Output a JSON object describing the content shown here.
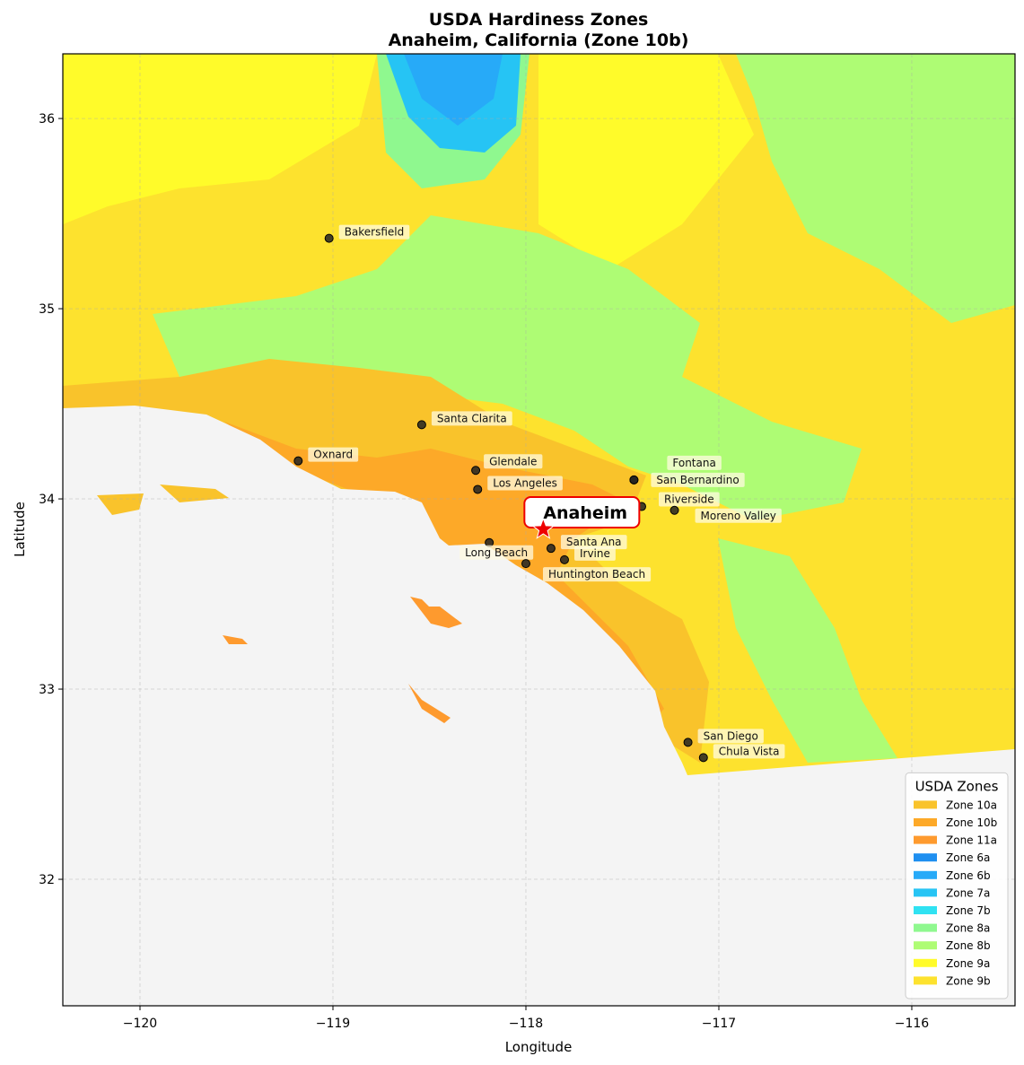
{
  "chart_data": {
    "type": "map",
    "title": "USDA Hardiness Zones",
    "subtitle": "Anaheim, California (Zone 10b)",
    "xlabel": "Longitude",
    "ylabel": "Latitude",
    "xlim": [
      -120.4,
      -115.465
    ],
    "ylim": [
      31.335,
      36.34
    ],
    "xticks": [
      {
        "value": -120,
        "label": "−120"
      },
      {
        "value": -119,
        "label": "−119"
      },
      {
        "value": -118,
        "label": "−118"
      },
      {
        "value": -117,
        "label": "−117"
      },
      {
        "value": -116,
        "label": "−116"
      }
    ],
    "yticks": [
      32,
      33,
      34,
      35,
      36
    ],
    "grid": true,
    "legend_title": "USDA Zones",
    "legend_position": "lower right",
    "zones": [
      {
        "name": "Zone 10a",
        "color": "#f9c32b"
      },
      {
        "name": "Zone 10b",
        "color": "#fda928"
      },
      {
        "name": "Zone 11a",
        "color": "#fe9a2e"
      },
      {
        "name": "Zone 6a",
        "color": "#1f8ff0"
      },
      {
        "name": "Zone 6b",
        "color": "#27aaf8"
      },
      {
        "name": "Zone 7a",
        "color": "#26c4f4"
      },
      {
        "name": "Zone 7b",
        "color": "#2fe2f2"
      },
      {
        "name": "Zone 8a",
        "color": "#8ff88f"
      },
      {
        "name": "Zone 8b",
        "color": "#aefc74"
      },
      {
        "name": "Zone 9a",
        "color": "#fffb2a"
      },
      {
        "name": "Zone 9b",
        "color": "#fde22e"
      }
    ],
    "highlight": {
      "name": "Anaheim",
      "lon": -117.91,
      "lat": 33.84
    },
    "cities": [
      {
        "name": "Bakersfield",
        "lon": -119.02,
        "lat": 35.37
      },
      {
        "name": "Santa Clarita",
        "lon": -118.54,
        "lat": 34.39
      },
      {
        "name": "Oxnard",
        "lon": -119.18,
        "lat": 34.2
      },
      {
        "name": "Glendale",
        "lon": -118.26,
        "lat": 34.15
      },
      {
        "name": "Los Angeles",
        "lon": -118.25,
        "lat": 34.05
      },
      {
        "name": "Fontana",
        "lon": -117.44,
        "lat": 34.1
      },
      {
        "name": "San Bernardino",
        "lon": -117.44,
        "lat": 34.1
      },
      {
        "name": "Riverside",
        "lon": -117.4,
        "lat": 33.96
      },
      {
        "name": "Moreno Valley",
        "lon": -117.23,
        "lat": 33.94
      },
      {
        "name": "Santa Ana",
        "lon": -117.87,
        "lat": 33.74
      },
      {
        "name": "Irvine",
        "lon": -117.8,
        "lat": 33.68
      },
      {
        "name": "Long Beach",
        "lon": -118.19,
        "lat": 33.77
      },
      {
        "name": "Huntington Beach",
        "lon": -118.0,
        "lat": 33.66
      },
      {
        "name": "San Diego",
        "lon": -117.16,
        "lat": 32.72
      },
      {
        "name": "Chula Vista",
        "lon": -117.08,
        "lat": 32.64
      }
    ]
  }
}
